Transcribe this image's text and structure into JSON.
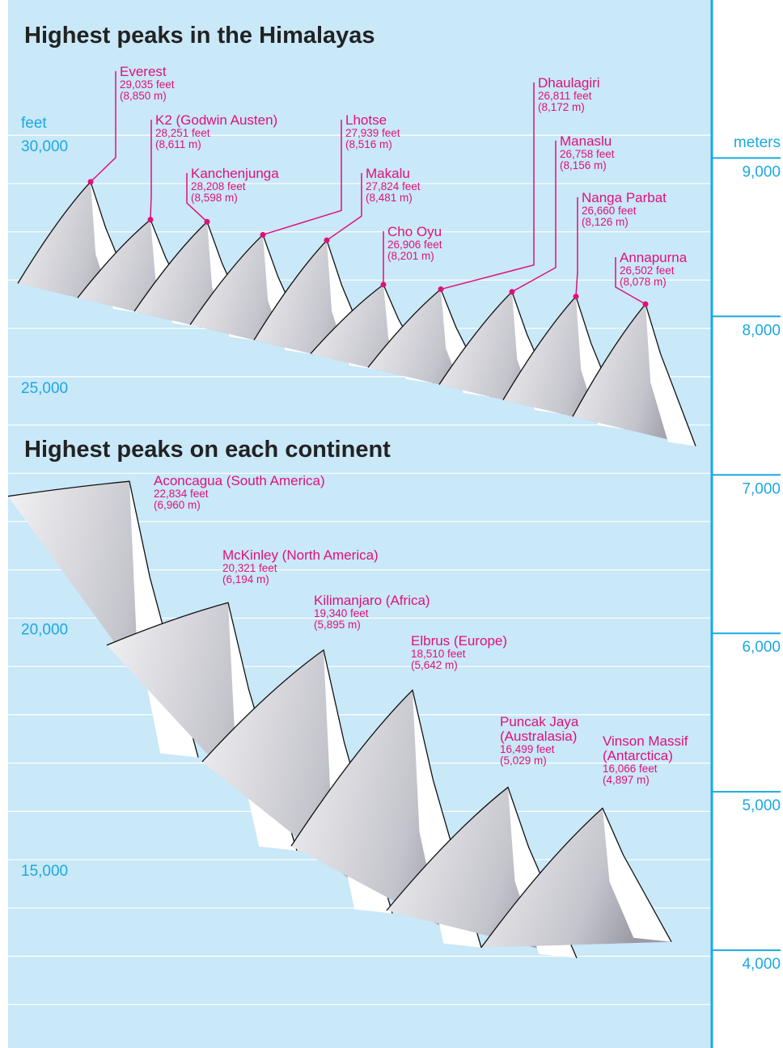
{
  "chart_data": {
    "type": "mountain",
    "ylabel": "feet",
    "y2label": "meters",
    "ylim": [
      11100,
      32800
    ],
    "yticks": [
      {
        "value": 15000,
        "label": "15,000"
      },
      {
        "value": 20000,
        "label": "20,000"
      },
      {
        "value": 25000,
        "label": "25,000"
      },
      {
        "value": 30000,
        "label": "30,000"
      }
    ],
    "ygrid": [
      12000,
      13000,
      14000,
      15000,
      16000,
      17000,
      18000,
      19000,
      20000,
      21000,
      22000,
      23000,
      24000,
      25000,
      26000,
      27000,
      28000,
      29000,
      30000
    ],
    "y2lim": [
      3383,
      9997
    ],
    "y2ticks": [
      {
        "value": 4000,
        "label": "4,000"
      },
      {
        "value": 5000,
        "label": "5,000"
      },
      {
        "value": 6000,
        "label": "6,000"
      },
      {
        "value": 7000,
        "label": "7,000"
      },
      {
        "value": 8000,
        "label": "8,000"
      },
      {
        "value": 9000,
        "label": "9,000"
      }
    ],
    "color": "#e0107a",
    "groups": [
      {
        "title": "Highest peaks in the Himalayas",
        "categories": [
          "Everest",
          "K2 (Godwin Austen)",
          "Kanchenjunga",
          "Lhotse",
          "Makalu",
          "Cho Oyu",
          "Dhaulagiri",
          "Manaslu",
          "Nanga Parbat",
          "Annapurna"
        ],
        "values": [
          29035,
          28251,
          28208,
          27939,
          27824,
          26906,
          26811,
          26758,
          26660,
          26502
        ],
        "value_labels": [
          "29,035 feet",
          "28,251 feet",
          "28,208 feet",
          "27,939 feet",
          "27,824 feet",
          "26,906 feet",
          "26,811 feet",
          "26,758 feet",
          "26,660 feet",
          "26,502 feet"
        ],
        "meters": [
          8850,
          8611,
          8598,
          8516,
          8481,
          8201,
          8172,
          8156,
          8126,
          8078
        ],
        "meter_labels": [
          "(8,850 m)",
          "(8,611 m)",
          "(8,598 m)",
          "(8,516 m)",
          "(8,481 m)",
          "(8,201 m)",
          "(8,172 m)",
          "(8,156 m)",
          "(8,126 m)",
          "(8,078 m)"
        ]
      },
      {
        "title": "Highest peaks on each continent",
        "categories": [
          "Aconcagua (South America)",
          "McKinley (North America)",
          "Kilimanjaro (Africa)",
          "Elbrus (Europe)",
          "Puncak Jaya (Australasia)",
          "Vinson Massif (Antarctica)"
        ],
        "values": [
          22834,
          20321,
          19340,
          18510,
          16499,
          16066
        ],
        "value_labels": [
          "22,834 feet",
          "20,321 feet",
          "19,340 feet",
          "18,510 feet",
          "16,499 feet",
          "16,066 feet"
        ],
        "meters": [
          6960,
          6194,
          5895,
          5642,
          5029,
          4897
        ],
        "meter_labels": [
          "(6,960 m)",
          "(6,194 m)",
          "(5,895 m)",
          "(5,642 m)",
          "(5,029 m)",
          "(4,897 m)"
        ]
      }
    ]
  }
}
